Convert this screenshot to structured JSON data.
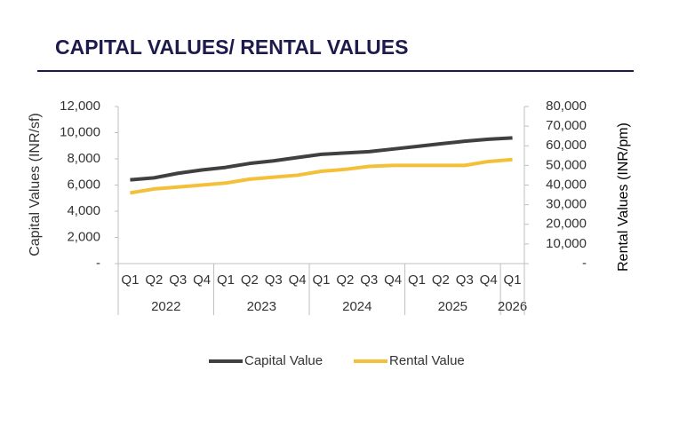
{
  "chart_data": {
    "type": "line",
    "title": "CAPITAL VALUES/ RENTAL VALUES",
    "y_label": "Capital Values (INR/sf)",
    "y2_label": "Rental Values (INR/pm)",
    "categories": [
      "Q1",
      "Q2",
      "Q3",
      "Q4",
      "Q1",
      "Q2",
      "Q3",
      "Q4",
      "Q1",
      "Q2",
      "Q3",
      "Q4",
      "Q1",
      "Q2",
      "Q3",
      "Q4",
      "Q1"
    ],
    "years": [
      "2022",
      null,
      null,
      null,
      "2023",
      null,
      null,
      null,
      "2024",
      null,
      null,
      null,
      "2025",
      null,
      null,
      null,
      "2026"
    ],
    "series": [
      {
        "name": "Capital Value",
        "color": "#404040",
        "values": [
          6400,
          6550,
          6900,
          7150,
          7350,
          7650,
          7850,
          8100,
          8350,
          8450,
          8550,
          8750,
          8950,
          9150,
          9350,
          9500,
          9600
        ]
      },
      {
        "name": "Rental Value",
        "color": "#f4c03a",
        "axis": "y2",
        "values": [
          36000,
          38000,
          39000,
          40000,
          41000,
          43000,
          44000,
          45000,
          47000,
          48000,
          49500,
          50000,
          50000,
          50000,
          50000,
          52000,
          53000
        ]
      }
    ],
    "ylim": [
      0,
      12000
    ],
    "yticks": [
      {
        "value": 0,
        "label": "-"
      },
      {
        "value": 2000,
        "label": "2,000"
      },
      {
        "value": 4000,
        "label": "4,000"
      },
      {
        "value": 6000,
        "label": "6,000"
      },
      {
        "value": 8000,
        "label": "8,000"
      },
      {
        "value": 10000,
        "label": "10,000"
      },
      {
        "value": 12000,
        "label": "12,000"
      }
    ],
    "y2lim": [
      0,
      80000
    ],
    "y2ticks": [
      {
        "value": 0,
        "label": "-"
      },
      {
        "value": 10000,
        "label": "10,000"
      },
      {
        "value": 20000,
        "label": "20,000"
      },
      {
        "value": 30000,
        "label": "30,000"
      },
      {
        "value": 40000,
        "label": "40,000"
      },
      {
        "value": 50000,
        "label": "50,000"
      },
      {
        "value": 60000,
        "label": "60,000"
      },
      {
        "value": 70000,
        "label": "70,000"
      },
      {
        "value": 80000,
        "label": "80,000"
      }
    ],
    "legend": "bottom",
    "grid": false
  }
}
